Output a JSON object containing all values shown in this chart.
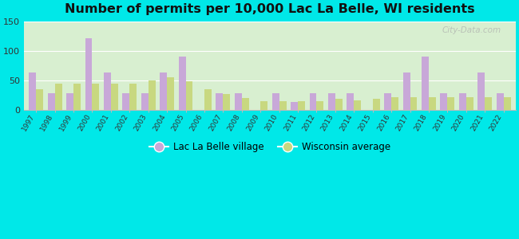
{
  "title": "Number of permits per 10,000 Lac La Belle, WI residents",
  "years": [
    1997,
    1998,
    1999,
    2000,
    2001,
    2002,
    2003,
    2004,
    2005,
    2006,
    2007,
    2008,
    2009,
    2010,
    2011,
    2012,
    2013,
    2014,
    2015,
    2016,
    2017,
    2018,
    2019,
    2020,
    2021,
    2022
  ],
  "lac_la_belle": [
    63,
    28,
    28,
    122,
    63,
    28,
    28,
    63,
    90,
    0,
    28,
    28,
    0,
    28,
    13,
    28,
    28,
    28,
    0,
    28,
    63,
    90,
    28,
    28,
    63,
    28
  ],
  "wisconsin_avg": [
    35,
    45,
    45,
    45,
    45,
    45,
    50,
    55,
    48,
    35,
    27,
    20,
    15,
    15,
    14,
    14,
    18,
    16,
    18,
    22,
    22,
    22,
    22,
    22,
    22,
    22
  ],
  "bar_color_lac": "#c8a8d8",
  "bar_color_wi": "#c8d880",
  "background_color_outer": "#00e8e8",
  "plot_bg_top": "#d8efd0",
  "plot_bg_bottom": "#eef8e8",
  "ylim": [
    0,
    150
  ],
  "yticks": [
    0,
    50,
    100,
    150
  ],
  "legend_lac": "Lac La Belle village",
  "legend_wi": "Wisconsin average",
  "title_fontsize": 11.5,
  "bar_width": 0.38
}
